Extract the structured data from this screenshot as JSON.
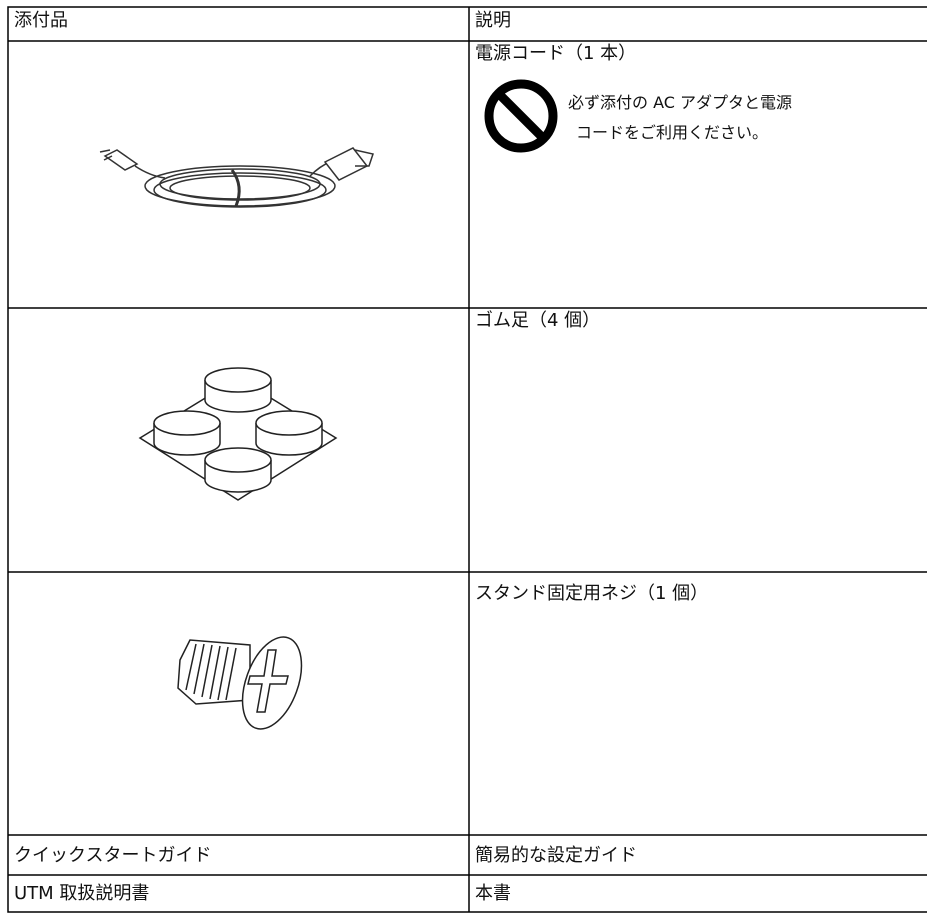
{
  "table": {
    "header": [
      "添付品",
      "説明"
    ],
    "rows": [
      {
        "description": "電源コード（1 本）",
        "note": [
          "必ず添付の AC アダプタと電源",
          "コードをご利用ください。"
        ]
      },
      {
        "description": "ゴム足（4 個）"
      },
      {
        "description": "スタンド固定用ネジ（1 個）"
      },
      {
        "item": "クイックスタートガイド",
        "description": "簡易的な設定ガイド"
      },
      {
        "item": "UTM 取扱説明書",
        "description": "本書"
      }
    ]
  }
}
